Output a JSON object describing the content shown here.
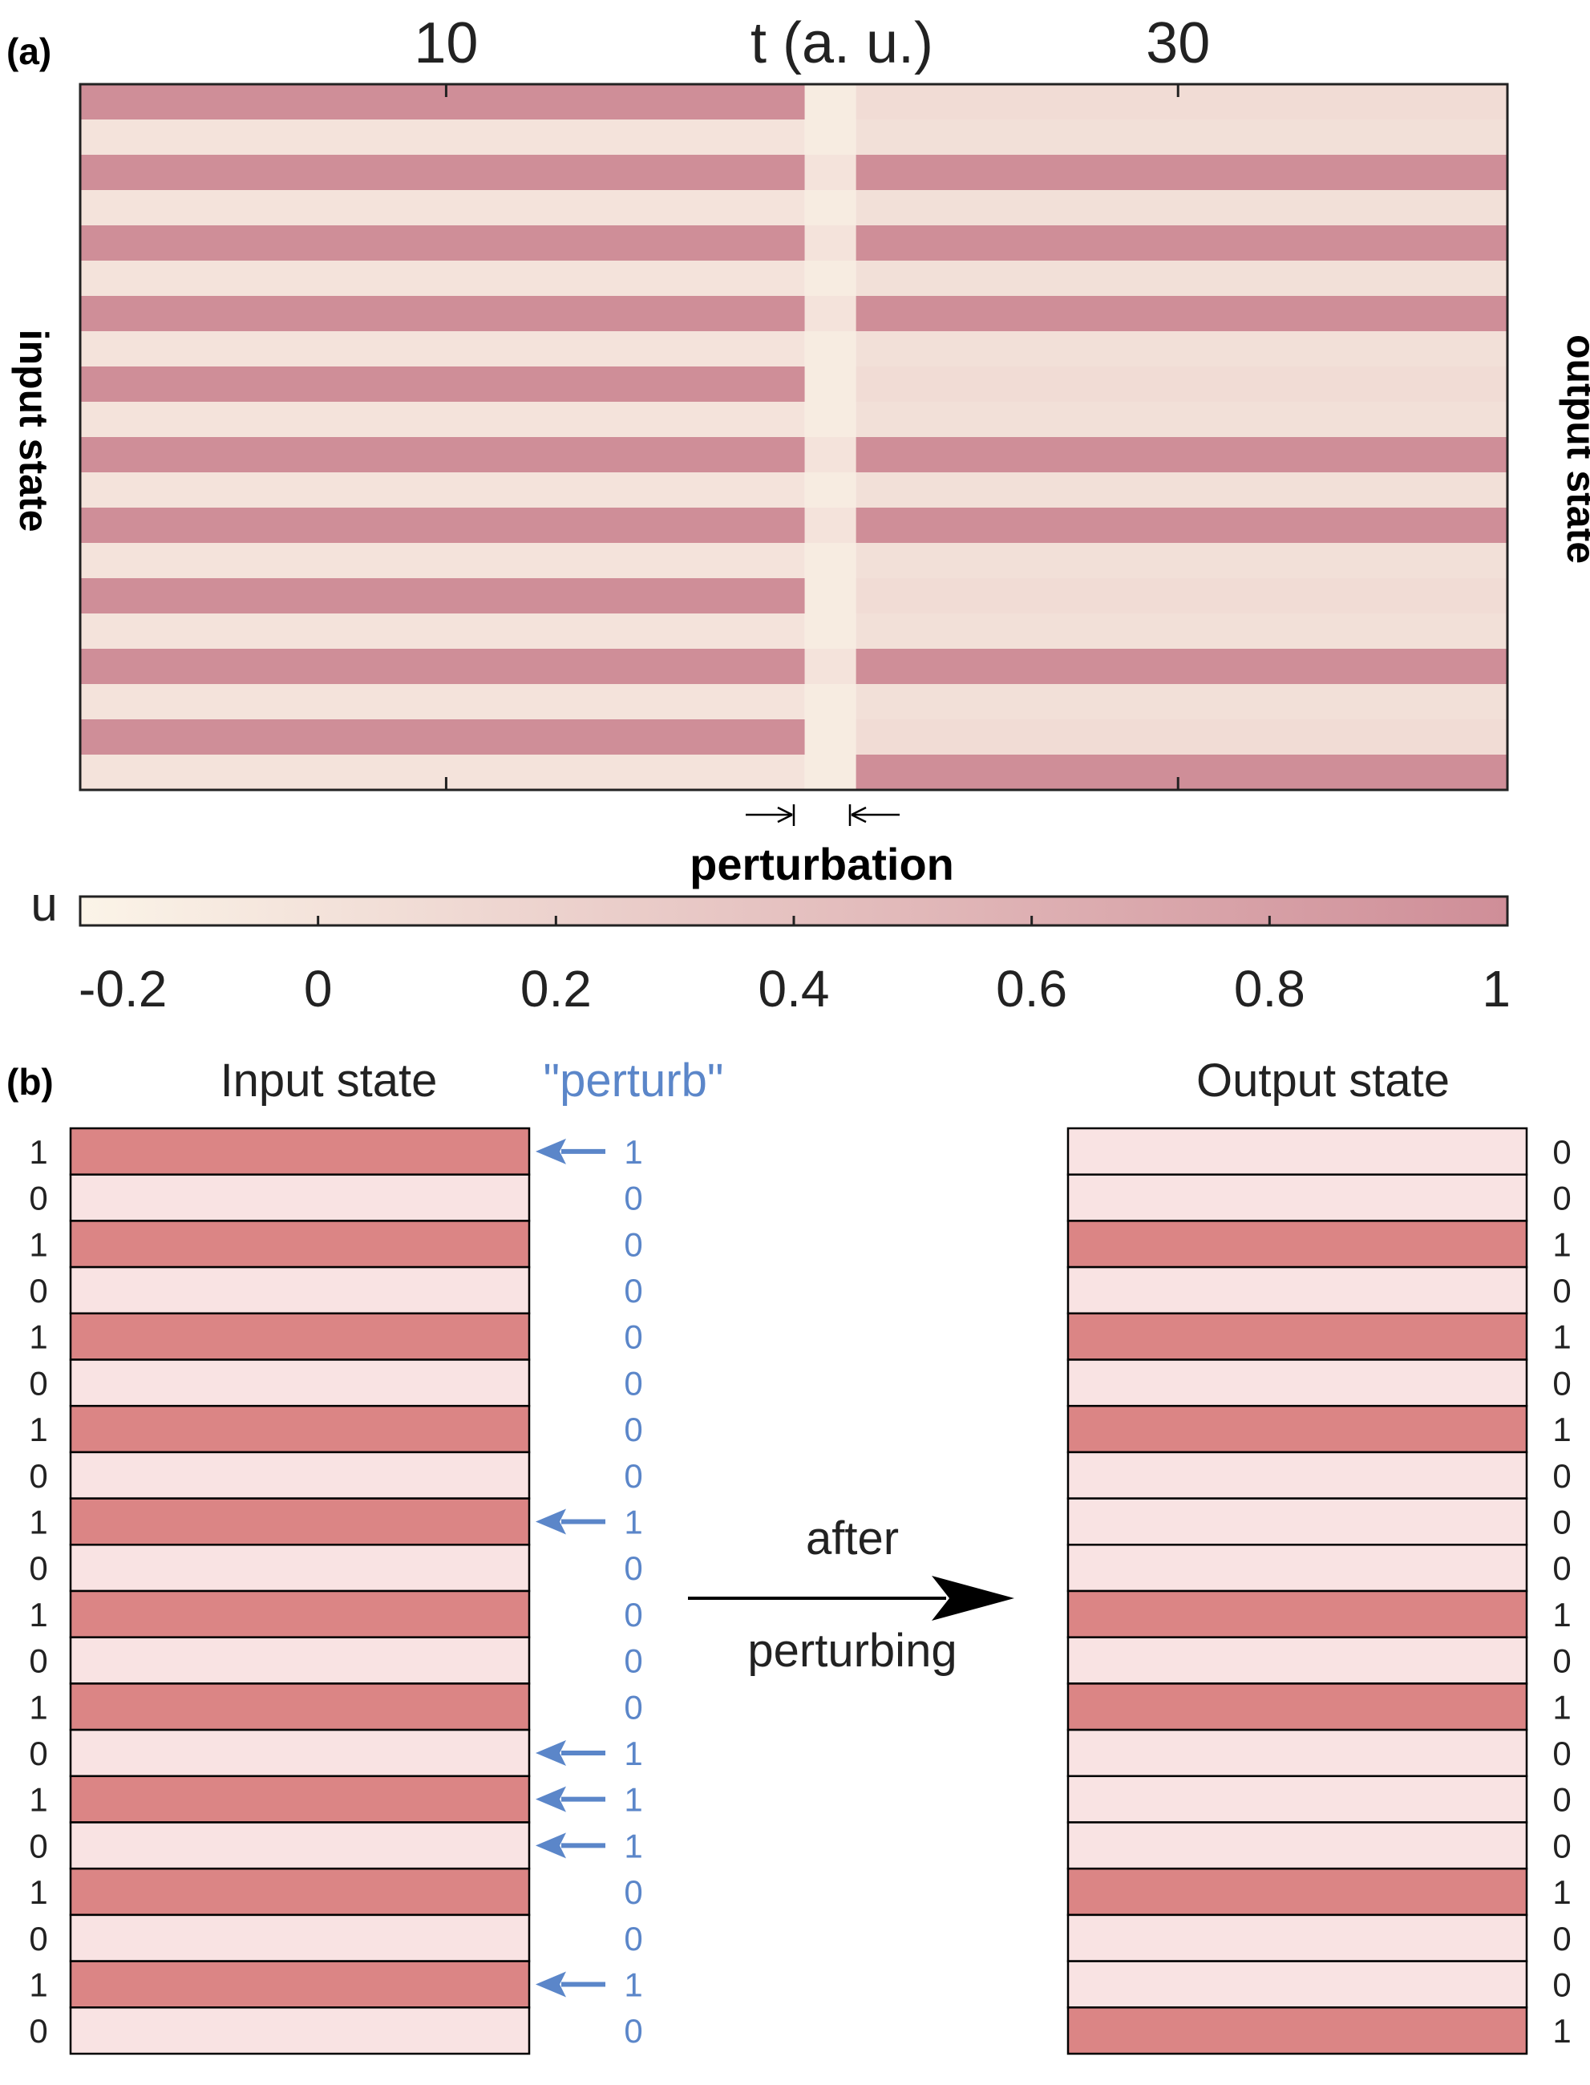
{
  "panel_a": {
    "label": "(a)",
    "x_axis_label": "t (a. u.)",
    "x_ticks": [
      "10",
      "30"
    ],
    "left_label": "input state",
    "right_label": "output state",
    "perturbation_label": "perturbation",
    "colorbar_label": "u",
    "colorbar_ticks": [
      "-0.2",
      "0",
      "0.2",
      "0.4",
      "0.6",
      "0.8",
      "1"
    ],
    "colors": {
      "low": "#fbf4e8",
      "high": "#cf8e98",
      "axis": "#222222"
    },
    "chart_data": {
      "type": "heatmap",
      "x_unit": "t (a. u.)",
      "x_tick_values": [
        10,
        30
      ],
      "t_range": [
        0,
        39
      ],
      "perturbation_window": [
        19.8,
        21.2
      ],
      "color_range": [
        -0.2,
        1
      ],
      "rows": 20,
      "input_values": [
        1,
        0,
        1,
        0,
        1,
        0,
        1,
        0,
        1,
        0,
        1,
        0,
        1,
        0,
        1,
        0,
        1,
        0,
        1,
        0
      ],
      "output_values": [
        0,
        0,
        1,
        0,
        1,
        0,
        1,
        0,
        0,
        0,
        1,
        0,
        1,
        0,
        0,
        0,
        1,
        0,
        0,
        1
      ]
    }
  },
  "panel_b": {
    "label": "(b)",
    "input_title": "Input state",
    "perturb_title": "\"perturb\"",
    "output_title": "Output state",
    "arrow_top_label": "after",
    "arrow_bottom_label": "perturbing",
    "colors": {
      "one": "#db8585",
      "zero": "#f9e3e3",
      "perturb": "#5b86c9"
    },
    "input_bits": [
      "1",
      "0",
      "1",
      "0",
      "1",
      "0",
      "1",
      "0",
      "1",
      "0",
      "1",
      "0",
      "1",
      "0",
      "1",
      "0",
      "1",
      "0",
      "1",
      "0"
    ],
    "perturb_bits": [
      "1",
      "0",
      "0",
      "0",
      "0",
      "0",
      "0",
      "0",
      "1",
      "0",
      "0",
      "0",
      "0",
      "1",
      "1",
      "1",
      "0",
      "0",
      "1",
      "0"
    ],
    "output_bits": [
      "0",
      "0",
      "1",
      "0",
      "1",
      "0",
      "1",
      "0",
      "0",
      "0",
      "1",
      "0",
      "1",
      "0",
      "0",
      "0",
      "1",
      "0",
      "0",
      "1"
    ]
  }
}
